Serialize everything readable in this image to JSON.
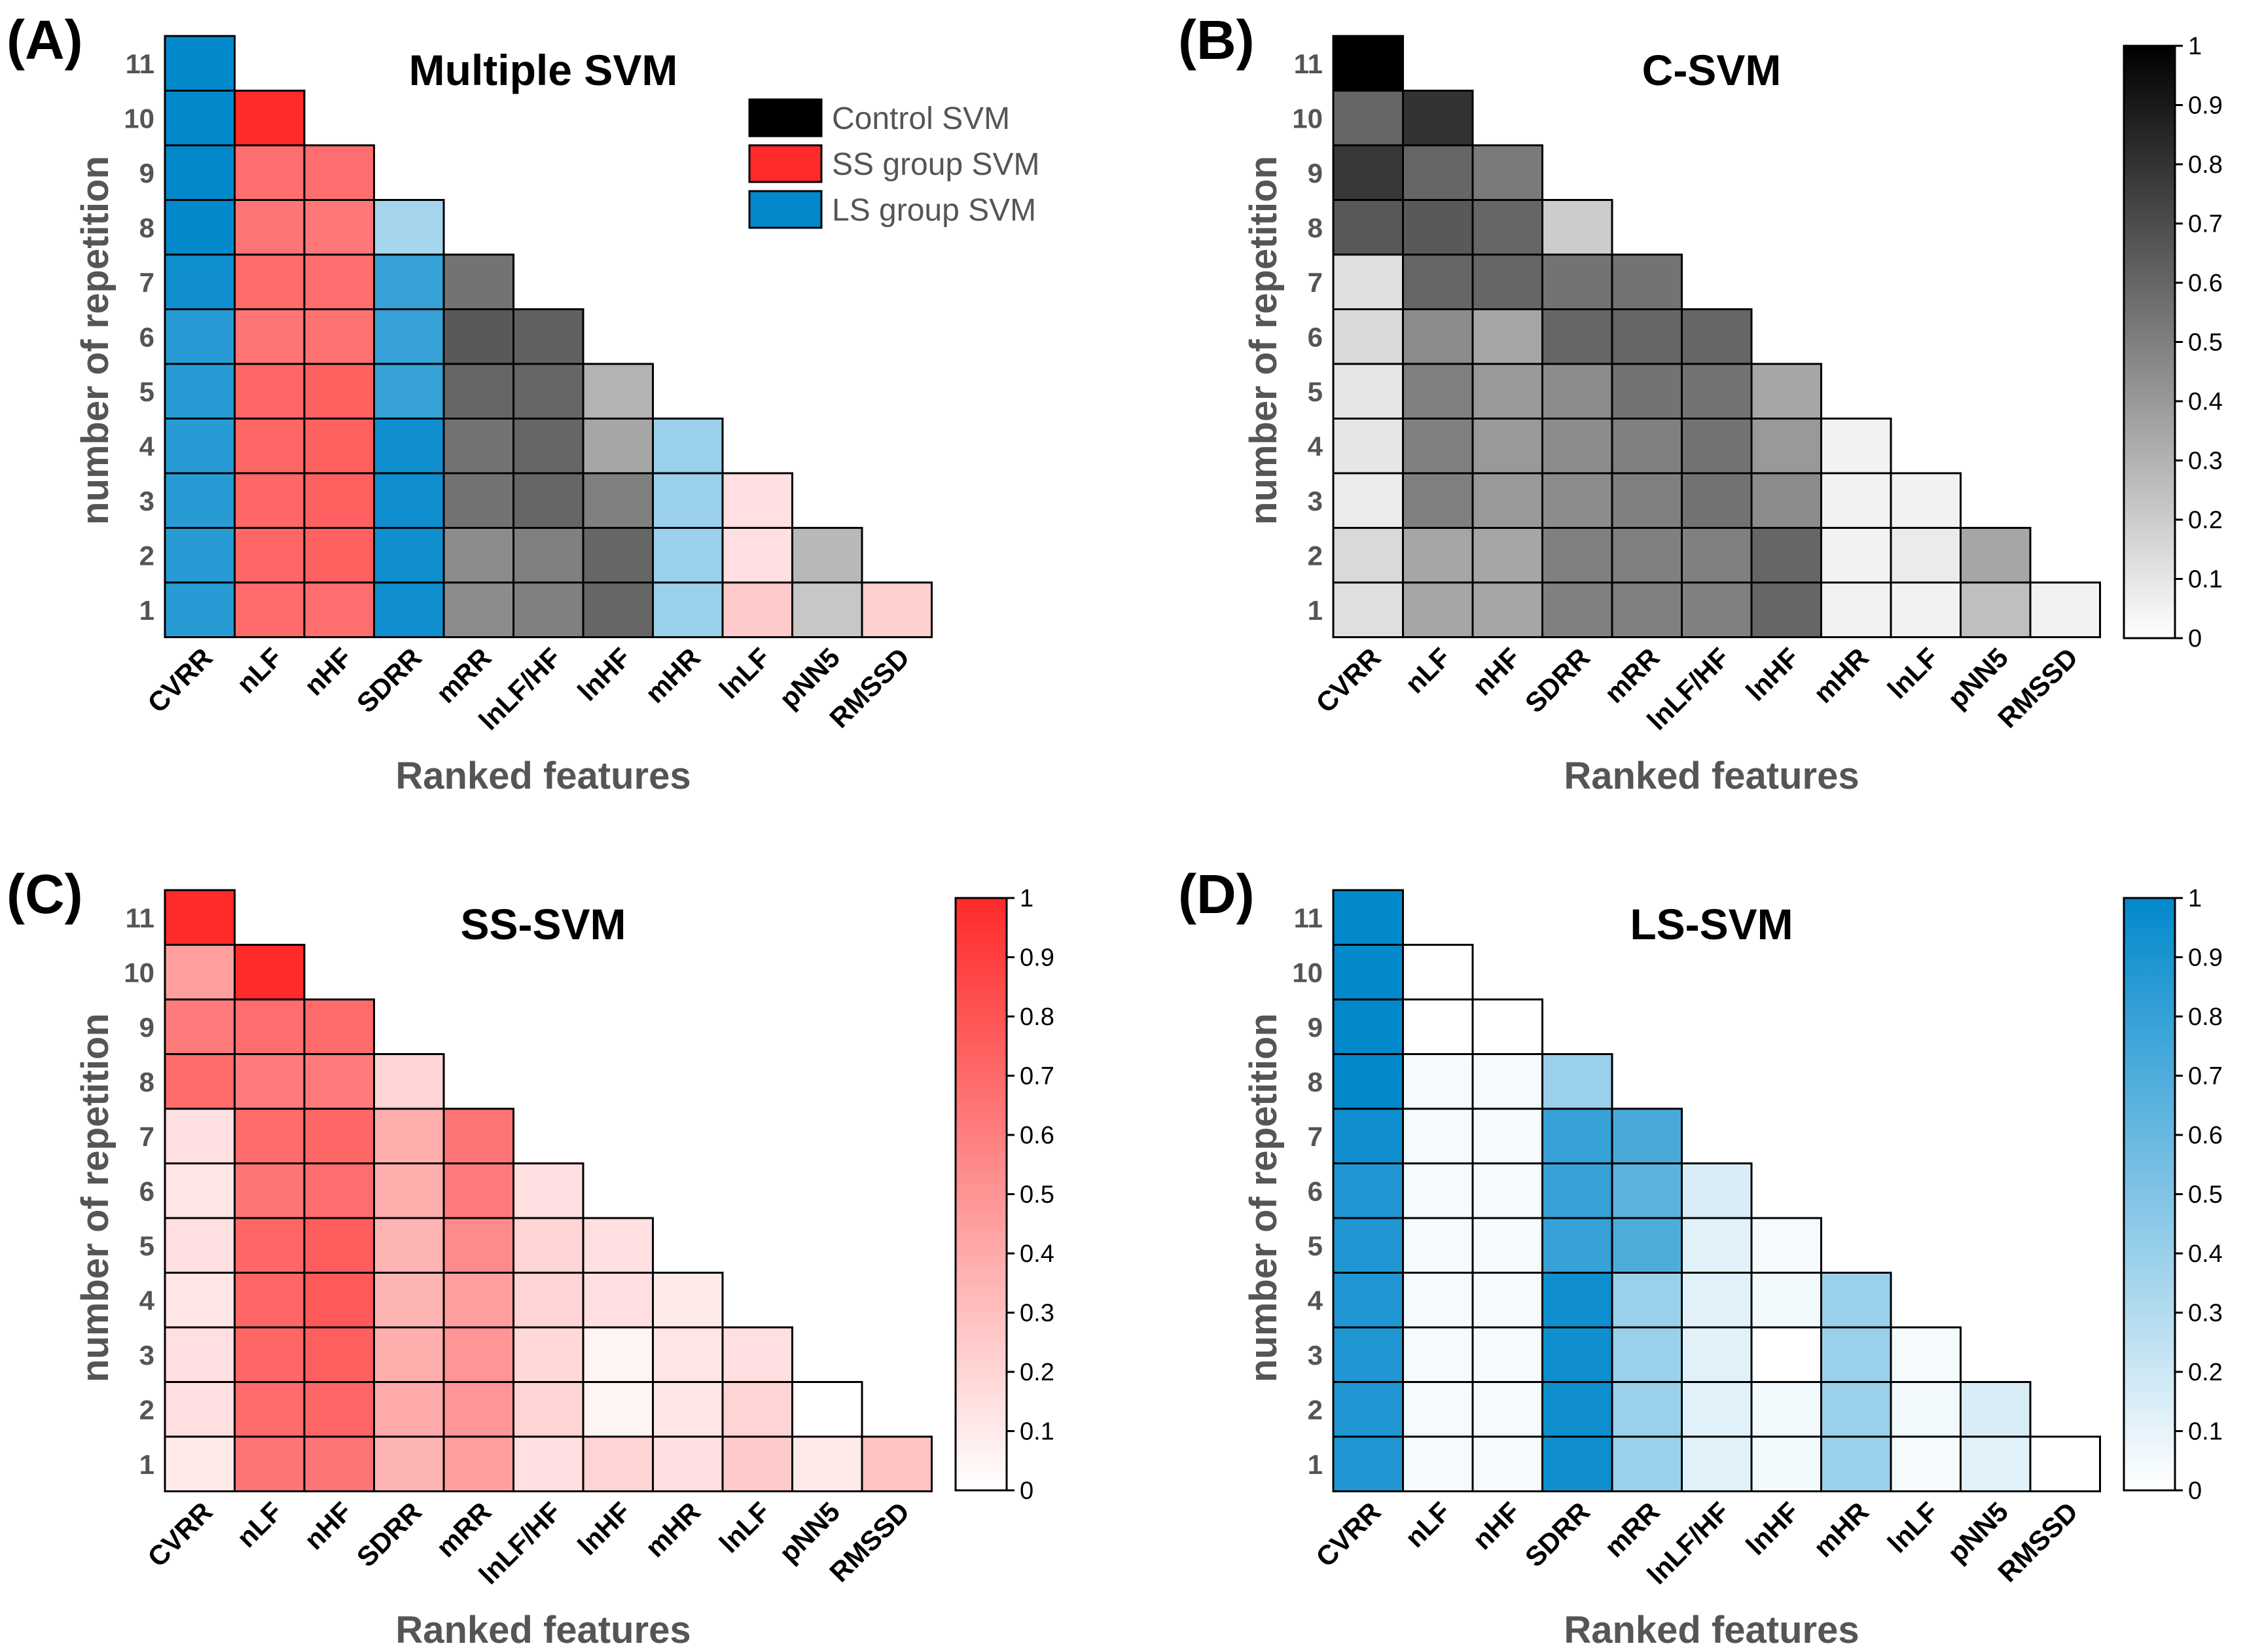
{
  "chart_data": [
    {
      "type": "heatmap",
      "panel_label": "(A)",
      "title": "Multiple SVM",
      "xlabel": "Ranked features",
      "ylabel": "number of repetition",
      "x_categories": [
        "CVRR",
        "nLF",
        "nHF",
        "SDRR",
        "mRR",
        "lnLF/HF",
        "lnHF",
        "mHR",
        "lnLF",
        "pNN5",
        "RMSSD"
      ],
      "y_categories": [
        "1",
        "2",
        "3",
        "4",
        "5",
        "6",
        "7",
        "8",
        "9",
        "10",
        "11"
      ],
      "mode": "winner",
      "legend": [
        {
          "label": "Control SVM",
          "color": "#000000"
        },
        {
          "label": "SS group SVM",
          "color": "#ff2a2a"
        },
        {
          "label": "LS group SVM",
          "color": "#0289cc"
        }
      ],
      "cells": [
        [
          [
            "L",
            0.85
          ],
          [
            "S",
            0.7
          ],
          [
            "S",
            0.68
          ],
          [
            "L",
            0.95
          ],
          [
            "C",
            0.45
          ],
          [
            "C",
            0.5
          ],
          [
            "C",
            0.6
          ],
          [
            "L",
            0.4
          ],
          [
            "S",
            0.25
          ],
          [
            "C",
            0.22
          ],
          [
            "S",
            0.22
          ]
        ],
        [
          [
            "L",
            0.85
          ],
          [
            "S",
            0.72
          ],
          [
            "S",
            0.74
          ],
          [
            "L",
            0.95
          ],
          [
            "C",
            0.45
          ],
          [
            "C",
            0.5
          ],
          [
            "C",
            0.6
          ],
          [
            "L",
            0.4
          ],
          [
            "S",
            0.15
          ],
          [
            "C",
            0.28
          ]
        ],
        [
          [
            "L",
            0.85
          ],
          [
            "S",
            0.72
          ],
          [
            "S",
            0.74
          ],
          [
            "L",
            0.95
          ],
          [
            "C",
            0.55
          ],
          [
            "C",
            0.6
          ],
          [
            "C",
            0.5
          ],
          [
            "L",
            0.4
          ],
          [
            "S",
            0.15
          ]
        ],
        [
          [
            "L",
            0.85
          ],
          [
            "S",
            0.72
          ],
          [
            "S",
            0.74
          ],
          [
            "L",
            0.95
          ],
          [
            "C",
            0.55
          ],
          [
            "C",
            0.6
          ],
          [
            "C",
            0.35
          ],
          [
            "L",
            0.4
          ]
        ],
        [
          [
            "L",
            0.85
          ],
          [
            "S",
            0.72
          ],
          [
            "S",
            0.74
          ],
          [
            "L",
            0.8
          ],
          [
            "C",
            0.6
          ],
          [
            "C",
            0.6
          ],
          [
            "C",
            0.3
          ]
        ],
        [
          [
            "L",
            0.85
          ],
          [
            "S",
            0.65
          ],
          [
            "S",
            0.66
          ],
          [
            "L",
            0.8
          ],
          [
            "C",
            0.65
          ],
          [
            "C",
            0.62
          ]
        ],
        [
          [
            "L",
            0.95
          ],
          [
            "S",
            0.7
          ],
          [
            "S",
            0.68
          ],
          [
            "L",
            0.8
          ],
          [
            "C",
            0.55
          ]
        ],
        [
          [
            "L",
            1.0
          ],
          [
            "S",
            0.65
          ],
          [
            "S",
            0.64
          ],
          [
            "L",
            0.35
          ]
        ],
        [
          [
            "L",
            1.0
          ],
          [
            "S",
            0.68
          ],
          [
            "S",
            0.68
          ]
        ],
        [
          [
            "L",
            1.0
          ],
          [
            "S",
            1.0
          ]
        ],
        [
          [
            "L",
            1.0
          ]
        ]
      ]
    },
    {
      "type": "heatmap",
      "panel_label": "(B)",
      "title": "C-SVM",
      "xlabel": "Ranked features",
      "ylabel": "number of repetition",
      "x_categories": [
        "CVRR",
        "nLF",
        "nHF",
        "SDRR",
        "mRR",
        "lnLF/HF",
        "lnHF",
        "mHR",
        "lnLF",
        "pNN5",
        "RMSSD"
      ],
      "y_categories": [
        "1",
        "2",
        "3",
        "4",
        "5",
        "6",
        "7",
        "8",
        "9",
        "10",
        "11"
      ],
      "mode": "scale",
      "color": "#000000",
      "colorbar_range": [
        0,
        1
      ],
      "colorbar_ticks": [
        "0",
        "0.1",
        "0.2",
        "0.3",
        "0.4",
        "0.5",
        "0.6",
        "0.7",
        "0.8",
        "0.9",
        "1"
      ],
      "cells": [
        [
          0.12,
          0.35,
          0.35,
          0.5,
          0.5,
          0.5,
          0.6,
          0.05,
          0.05,
          0.25,
          0.05
        ],
        [
          0.15,
          0.35,
          0.35,
          0.5,
          0.5,
          0.5,
          0.6,
          0.05,
          0.08,
          0.35
        ],
        [
          0.08,
          0.5,
          0.4,
          0.45,
          0.5,
          0.55,
          0.45,
          0.05,
          0.05
        ],
        [
          0.1,
          0.5,
          0.4,
          0.45,
          0.5,
          0.55,
          0.4,
          0.05
        ],
        [
          0.1,
          0.5,
          0.4,
          0.45,
          0.55,
          0.55,
          0.35
        ],
        [
          0.15,
          0.45,
          0.35,
          0.6,
          0.6,
          0.6
        ],
        [
          0.12,
          0.6,
          0.6,
          0.55,
          0.55
        ],
        [
          0.65,
          0.65,
          0.6,
          0.2
        ],
        [
          0.78,
          0.6,
          0.52
        ],
        [
          0.6,
          0.8
        ],
        [
          1.0
        ]
      ]
    },
    {
      "type": "heatmap",
      "panel_label": "(C)",
      "title": "SS-SVM",
      "xlabel": "Ranked features",
      "ylabel": "number of repetition",
      "x_categories": [
        "CVRR",
        "nLF",
        "nHF",
        "SDRR",
        "mRR",
        "lnLF/HF",
        "lnHF",
        "mHR",
        "lnLF",
        "pNN5",
        "RMSSD"
      ],
      "y_categories": [
        "1",
        "2",
        "3",
        "4",
        "5",
        "6",
        "7",
        "8",
        "9",
        "10",
        "11"
      ],
      "mode": "scale",
      "color": "#ff2a2a",
      "colorbar_range": [
        0,
        1
      ],
      "colorbar_ticks": [
        "0",
        "0.1",
        "0.2",
        "0.3",
        "0.4",
        "0.5",
        "0.6",
        "0.7",
        "0.8",
        "0.9",
        "1"
      ],
      "cells": [
        [
          0.1,
          0.65,
          0.65,
          0.35,
          0.45,
          0.15,
          0.2,
          0.15,
          0.25,
          0.1,
          0.28
        ],
        [
          0.15,
          0.7,
          0.72,
          0.4,
          0.5,
          0.2,
          0.05,
          0.12,
          0.2,
          0.0
        ],
        [
          0.15,
          0.72,
          0.75,
          0.38,
          0.5,
          0.18,
          0.05,
          0.12,
          0.15
        ],
        [
          0.12,
          0.72,
          0.78,
          0.35,
          0.45,
          0.2,
          0.15,
          0.1
        ],
        [
          0.15,
          0.72,
          0.76,
          0.35,
          0.55,
          0.2,
          0.15
        ],
        [
          0.12,
          0.65,
          0.68,
          0.38,
          0.62,
          0.15
        ],
        [
          0.15,
          0.7,
          0.72,
          0.38,
          0.65
        ],
        [
          0.7,
          0.62,
          0.62,
          0.2
        ],
        [
          0.62,
          0.68,
          0.7
        ],
        [
          0.45,
          1.0
        ],
        [
          1.0
        ]
      ]
    },
    {
      "type": "heatmap",
      "panel_label": "(D)",
      "title": "LS-SVM",
      "xlabel": "Ranked features",
      "ylabel": "number of repetition",
      "x_categories": [
        "CVRR",
        "nLF",
        "nHF",
        "SDRR",
        "mRR",
        "lnLF/HF",
        "lnHF",
        "mHR",
        "lnLF",
        "pNN5",
        "RMSSD"
      ],
      "y_categories": [
        "1",
        "2",
        "3",
        "4",
        "5",
        "6",
        "7",
        "8",
        "9",
        "10",
        "11"
      ],
      "mode": "scale",
      "color": "#0289cc",
      "colorbar_range": [
        0,
        1
      ],
      "colorbar_ticks": [
        "0",
        "0.1",
        "0.2",
        "0.3",
        "0.4",
        "0.5",
        "0.6",
        "0.7",
        "0.8",
        "0.9",
        "1"
      ],
      "cells": [
        [
          0.88,
          0.04,
          0.04,
          0.95,
          0.4,
          0.12,
          0.05,
          0.4,
          0.04,
          0.12,
          0.0
        ],
        [
          0.88,
          0.04,
          0.04,
          0.95,
          0.4,
          0.12,
          0.05,
          0.4,
          0.05,
          0.15
        ],
        [
          0.88,
          0.04,
          0.04,
          0.95,
          0.4,
          0.12,
          0.0,
          0.4,
          0.04
        ],
        [
          0.88,
          0.04,
          0.04,
          0.95,
          0.4,
          0.12,
          0.05,
          0.4
        ],
        [
          0.88,
          0.04,
          0.04,
          0.8,
          0.7,
          0.12,
          0.04
        ],
        [
          0.88,
          0.04,
          0.04,
          0.8,
          0.65,
          0.15
        ],
        [
          0.95,
          0.04,
          0.04,
          0.8,
          0.72
        ],
        [
          1.0,
          0.04,
          0.04,
          0.4
        ],
        [
          1.0,
          0.0,
          0.0
        ],
        [
          1.0,
          0.0
        ],
        [
          1.0
        ]
      ]
    }
  ]
}
